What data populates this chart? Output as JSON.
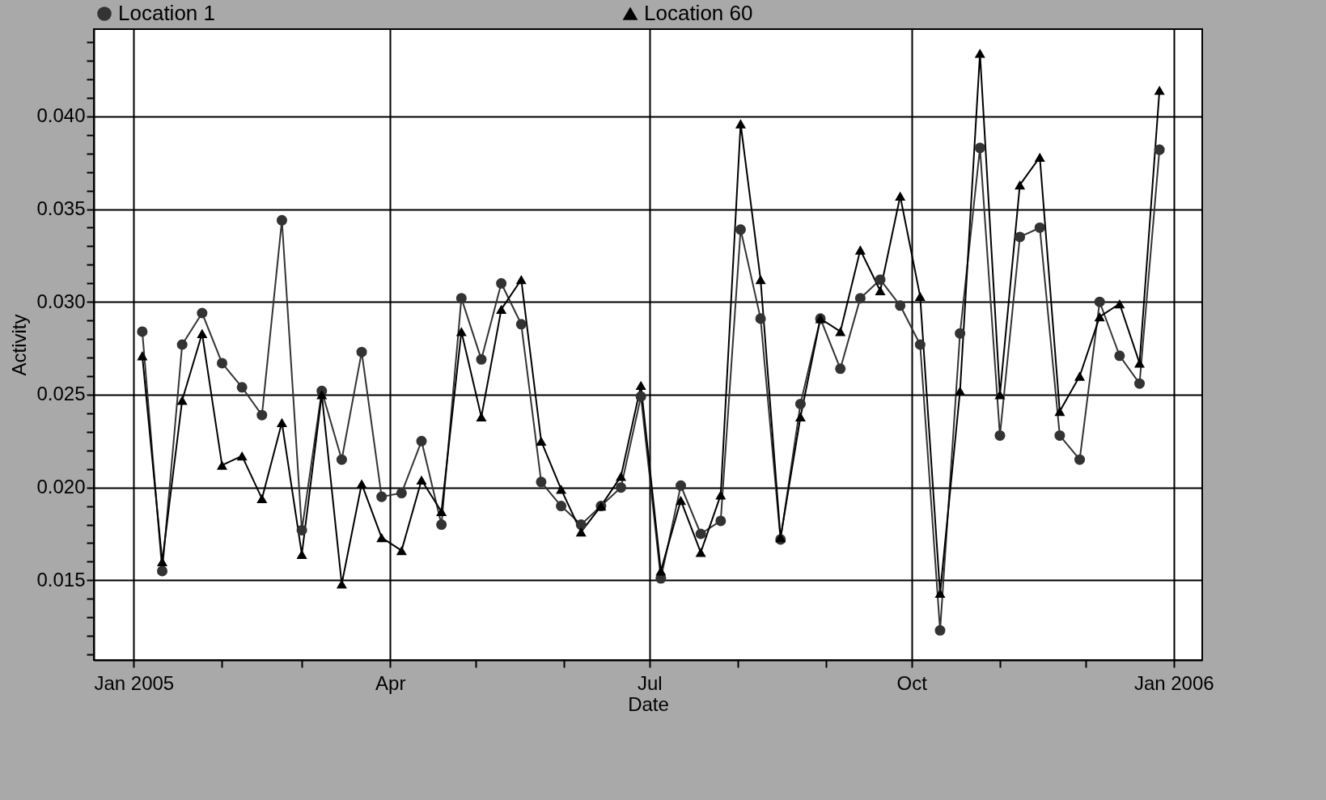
{
  "chart_data": {
    "type": "line",
    "xlabel": "Date",
    "ylabel": "Activity",
    "x": [
      "2005-01-04",
      "2005-01-11",
      "2005-01-18",
      "2005-01-25",
      "2005-02-01",
      "2005-02-08",
      "2005-02-15",
      "2005-02-22",
      "2005-03-01",
      "2005-03-08",
      "2005-03-15",
      "2005-03-22",
      "2005-03-29",
      "2005-04-05",
      "2005-04-12",
      "2005-04-19",
      "2005-04-26",
      "2005-05-03",
      "2005-05-10",
      "2005-05-17",
      "2005-05-24",
      "2005-05-31",
      "2005-06-07",
      "2005-06-14",
      "2005-06-21",
      "2005-06-28",
      "2005-07-05",
      "2005-07-12",
      "2005-07-19",
      "2005-07-26",
      "2005-08-02",
      "2005-08-09",
      "2005-08-16",
      "2005-08-23",
      "2005-08-30",
      "2005-09-06",
      "2005-09-13",
      "2005-09-20",
      "2005-09-27",
      "2005-10-04",
      "2005-10-11",
      "2005-10-18",
      "2005-10-25",
      "2005-11-01",
      "2005-11-08",
      "2005-11-15",
      "2005-11-22",
      "2005-11-29",
      "2005-12-06",
      "2005-12-13",
      "2005-12-20",
      "2005-12-27"
    ],
    "series": [
      {
        "name": "Location 1",
        "color": "#333333",
        "marker": "circle",
        "values": [
          0.0284,
          0.0155,
          0.0277,
          0.0294,
          0.0267,
          0.0254,
          0.0239,
          0.0344,
          0.0177,
          0.0252,
          0.0215,
          0.0273,
          0.0195,
          0.0197,
          0.0225,
          0.018,
          0.0302,
          0.0269,
          0.031,
          0.0288,
          0.0203,
          0.019,
          0.018,
          0.019,
          0.02,
          0.0249,
          0.0151,
          0.0201,
          0.0175,
          0.0182,
          0.0339,
          0.0291,
          0.0172,
          0.0245,
          0.0291,
          0.0264,
          0.0302,
          0.0312,
          0.0298,
          0.0277,
          0.0123,
          0.0283,
          0.0383,
          0.0228,
          0.0335,
          0.034,
          0.0228,
          0.0215,
          0.03,
          0.0271,
          0.0256,
          0.0382
        ]
      },
      {
        "name": "Location 60",
        "color": "#000000",
        "marker": "triangle",
        "values": [
          0.0271,
          0.016,
          0.0247,
          0.0283,
          0.0212,
          0.0217,
          0.0194,
          0.0235,
          0.0164,
          0.025,
          0.0148,
          0.0202,
          0.0173,
          0.0166,
          0.0204,
          0.0187,
          0.0284,
          0.0238,
          0.0296,
          0.0312,
          0.0225,
          0.0199,
          0.0176,
          0.019,
          0.0206,
          0.0255,
          0.0155,
          0.0193,
          0.0165,
          0.0196,
          0.0396,
          0.0312,
          0.0173,
          0.0238,
          0.0291,
          0.0284,
          0.0328,
          0.0306,
          0.0357,
          0.0303,
          0.0143,
          0.0252,
          0.0434,
          0.025,
          0.0363,
          0.0378,
          0.0241,
          0.026,
          0.0292,
          0.0299,
          0.0267,
          0.0414
        ]
      }
    ],
    "xlim": [
      "2004-12-18",
      "2006-01-11"
    ],
    "xticks": [
      {
        "value": "2005-01-01",
        "label": "Jan 2005"
      },
      {
        "value": "2005-02-01",
        "label": null
      },
      {
        "value": "2005-03-01",
        "label": null
      },
      {
        "value": "2005-04-01",
        "label": "Apr"
      },
      {
        "value": "2005-05-01",
        "label": null
      },
      {
        "value": "2005-06-01",
        "label": null
      },
      {
        "value": "2005-07-01",
        "label": "Jul"
      },
      {
        "value": "2005-08-01",
        "label": null
      },
      {
        "value": "2005-09-01",
        "label": null
      },
      {
        "value": "2005-10-01",
        "label": "Oct"
      },
      {
        "value": "2005-11-01",
        "label": null
      },
      {
        "value": "2005-12-01",
        "label": null
      },
      {
        "value": "2006-01-01",
        "label": "Jan 2006"
      }
    ],
    "ylim": [
      0.0107,
      0.0447
    ],
    "yticks": [
      {
        "value": 0.011,
        "label": null
      },
      {
        "value": 0.012,
        "label": null
      },
      {
        "value": 0.013,
        "label": null
      },
      {
        "value": 0.014,
        "label": null
      },
      {
        "value": 0.015,
        "label": "0.015"
      },
      {
        "value": 0.016,
        "label": null
      },
      {
        "value": 0.017,
        "label": null
      },
      {
        "value": 0.018,
        "label": null
      },
      {
        "value": 0.019,
        "label": null
      },
      {
        "value": 0.02,
        "label": "0.020"
      },
      {
        "value": 0.021,
        "label": null
      },
      {
        "value": 0.022,
        "label": null
      },
      {
        "value": 0.023,
        "label": null
      },
      {
        "value": 0.024,
        "label": null
      },
      {
        "value": 0.025,
        "label": "0.025"
      },
      {
        "value": 0.026,
        "label": null
      },
      {
        "value": 0.027,
        "label": null
      },
      {
        "value": 0.028,
        "label": null
      },
      {
        "value": 0.029,
        "label": null
      },
      {
        "value": 0.03,
        "label": "0.030"
      },
      {
        "value": 0.031,
        "label": null
      },
      {
        "value": 0.032,
        "label": null
      },
      {
        "value": 0.033,
        "label": null
      },
      {
        "value": 0.034,
        "label": null
      },
      {
        "value": 0.035,
        "label": "0.035"
      },
      {
        "value": 0.036,
        "label": null
      },
      {
        "value": 0.037,
        "label": null
      },
      {
        "value": 0.038,
        "label": null
      },
      {
        "value": 0.039,
        "label": null
      },
      {
        "value": 0.04,
        "label": "0.040"
      },
      {
        "value": 0.041,
        "label": null
      },
      {
        "value": 0.042,
        "label": null
      },
      {
        "value": 0.043,
        "label": null
      },
      {
        "value": 0.044,
        "label": null
      }
    ],
    "grid": true,
    "legend": "top",
    "line_style": "solid"
  }
}
